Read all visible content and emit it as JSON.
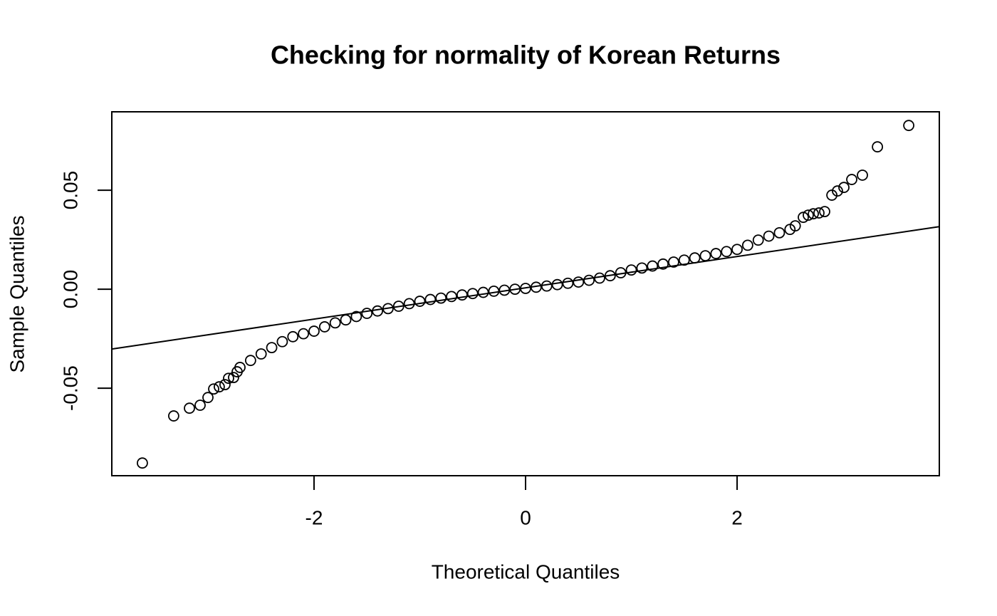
{
  "chart_data": {
    "type": "scatter",
    "title": "Checking for normality of Korean Returns",
    "x_label": "Theoretical Quantiles",
    "y_label": "Sample Quantiles",
    "xlim": [
      -3.912,
      3.912
    ],
    "ylim": [
      -0.0942,
      0.0896
    ],
    "xticks": [
      -2,
      0,
      2
    ],
    "yticks": [
      -0.05,
      {
        "value": 0,
        "label": "0.00"
      },
      0.05
    ],
    "color": "#000000",
    "reference_line": {
      "intercept": 0.0007,
      "slope": 0.0079
    },
    "x": [
      -3.623,
      -3.327,
      -3.178,
      -3.077,
      -3.003,
      -2.949,
      -2.896,
      -2.842,
      -2.808,
      -2.761,
      -2.727,
      -2.7,
      -2.6,
      -2.5,
      -2.4,
      -2.3,
      -2.2,
      -2.1,
      -2.0,
      -1.9,
      -1.8,
      -1.7,
      -1.6,
      -1.5,
      -1.4,
      -1.3,
      -1.2,
      -1.1,
      -1.0,
      -0.9,
      -0.8,
      -0.7,
      -0.6,
      -0.5,
      -0.4,
      -0.3,
      -0.2,
      -0.1,
      0,
      0.1,
      0.2,
      0.3,
      0.4,
      0.5,
      0.6,
      0.7,
      0.8,
      0.9,
      1.0,
      1.1,
      1.2,
      1.3,
      1.4,
      1.5,
      1.6,
      1.7,
      1.8,
      1.9,
      2.0,
      2.1,
      2.2,
      2.3,
      2.4,
      2.5,
      2.55,
      2.626,
      2.673,
      2.721,
      2.774,
      2.828,
      2.896,
      2.949,
      3.01,
      3.084,
      3.185,
      3.327,
      3.623
    ],
    "values": [
      -0.0878,
      -0.064,
      -0.0601,
      -0.0586,
      -0.0547,
      -0.0504,
      -0.0493,
      -0.0482,
      -0.045,
      -0.0446,
      -0.0417,
      -0.0395,
      -0.036,
      -0.0327,
      -0.0295,
      -0.0265,
      -0.024,
      -0.0225,
      -0.0212,
      -0.019,
      -0.017,
      -0.0155,
      -0.0138,
      -0.0122,
      -0.011,
      -0.0098,
      -0.0086,
      -0.0073,
      -0.0061,
      -0.0052,
      -0.0045,
      -0.0037,
      -0.0029,
      -0.0022,
      -0.0016,
      -0.001,
      -0.0005,
      0.0,
      0.0004,
      0.001,
      0.0016,
      0.0023,
      0.003,
      0.0036,
      0.0045,
      0.0056,
      0.0068,
      0.0083,
      0.0097,
      0.0107,
      0.0117,
      0.0127,
      0.0137,
      0.0147,
      0.0158,
      0.0169,
      0.018,
      0.019,
      0.0201,
      0.0222,
      0.0248,
      0.0268,
      0.0285,
      0.0302,
      0.032,
      0.0363,
      0.0374,
      0.0381,
      0.0385,
      0.0392,
      0.0475,
      0.0496,
      0.0514,
      0.0554,
      0.0576,
      0.0719,
      0.0827
    ]
  }
}
